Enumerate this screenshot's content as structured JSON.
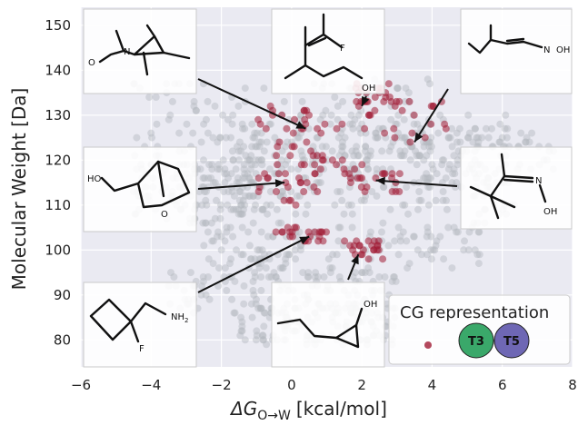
{
  "chart_data": {
    "type": "scatter",
    "xlabel": "ΔG",
    "xlabel_subscript": "O→W",
    "xlabel_unit": "[kcal/mol]",
    "ylabel": "Molecular Weight [Da]",
    "xlim": [
      -6,
      8
    ],
    "ylim": [
      74,
      154
    ],
    "xticks": [
      "−6",
      "−4",
      "−2",
      "0",
      "2",
      "4",
      "6",
      "8"
    ],
    "xtick_values": [
      -6,
      -4,
      -2,
      0,
      2,
      4,
      6,
      8
    ],
    "yticks": [
      "80",
      "90",
      "100",
      "110",
      "120",
      "130",
      "140",
      "150"
    ],
    "ytick_values": [
      80,
      90,
      100,
      110,
      120,
      130,
      140,
      150
    ],
    "grid": true,
    "background": "#eaeaf2",
    "colors": {
      "grey_points": "#b4b8bf",
      "red_points": "#a01c34",
      "t3": "#3aa86a",
      "t5": "#6e67b4"
    },
    "series": [
      {
        "color_key": "grey_points",
        "clusters": [
          {
            "x": [
              -4.5,
              4.0
            ],
            "y": [
              121,
              138
            ]
          },
          {
            "x": [
              -3.0,
              6.5
            ],
            "y": [
              115,
              130
            ]
          },
          {
            "x": [
              -2.0,
              7.5
            ],
            "y": [
              118,
              126
            ]
          },
          {
            "x": [
              -1.5,
              6.5
            ],
            "y": [
              108,
              118
            ]
          },
          {
            "x": [
              -4.5,
              -1.0
            ],
            "y": [
              106,
              120
            ]
          },
          {
            "x": [
              -2.5,
              5.5
            ],
            "y": [
              96,
              106
            ]
          },
          {
            "x": [
              -3.5,
              3.0
            ],
            "y": [
              86,
              96
            ]
          },
          {
            "x": [
              -1.5,
              3.0
            ],
            "y": [
              79,
              88
            ]
          }
        ]
      },
      {
        "color_key": "red_points",
        "clusters": [
          {
            "x": [
              1.8,
              4.5
            ],
            "y": [
              124,
              133
            ]
          },
          {
            "x": [
              1.8,
              3.0
            ],
            "y": [
              132,
              138
            ]
          },
          {
            "x": [
              -1.0,
              1.5
            ],
            "y": [
              125,
              133
            ]
          },
          {
            "x": [
              -0.5,
              1.5
            ],
            "y": [
              117,
              124
            ]
          },
          {
            "x": [
              1.5,
              3.2
            ],
            "y": [
              112,
              119
            ]
          },
          {
            "x": [
              -1.0,
              0.8
            ],
            "y": [
              110,
              117
            ]
          },
          {
            "x": [
              1.5,
              2.6
            ],
            "y": [
              98,
              102
            ]
          },
          {
            "x": [
              -0.5,
              1.0
            ],
            "y": [
              102,
              105
            ]
          }
        ]
      }
    ],
    "annotations": [
      {
        "id": "top-left",
        "arrow_to": [
          0.4,
          127
        ]
      },
      {
        "id": "top-center",
        "arrow_to": [
          2.0,
          132
        ]
      },
      {
        "id": "top-right",
        "arrow_to": [
          3.5,
          124
        ]
      },
      {
        "id": "mid-left",
        "arrow_to": [
          -0.2,
          115
        ]
      },
      {
        "id": "mid-right",
        "arrow_to": [
          2.4,
          115.5
        ]
      },
      {
        "id": "low-left",
        "arrow_to": [
          0.5,
          103
        ]
      },
      {
        "id": "bottom-center",
        "arrow_to": [
          1.9,
          99
        ]
      }
    ],
    "molecule_labels": {
      "top_left_O": "O",
      "top_left_N": "N",
      "top_center_F": "F",
      "top_center_OH": "OH",
      "top_right_N": "N",
      "top_right_OH": "OH",
      "mid_left_HO": "HO",
      "mid_left_O": "O",
      "mid_right_N": "N",
      "mid_right_OH": "OH",
      "low_left_NH": "NH",
      "low_left_sub": "2",
      "low_left_F": "F",
      "bottom_center_OH": "OH"
    },
    "legend": {
      "title": "CG representation",
      "placement": "lower-right",
      "items": [
        {
          "label": "T3",
          "color_key": "t3"
        },
        {
          "label": "T5",
          "color_key": "t5"
        }
      ]
    }
  }
}
